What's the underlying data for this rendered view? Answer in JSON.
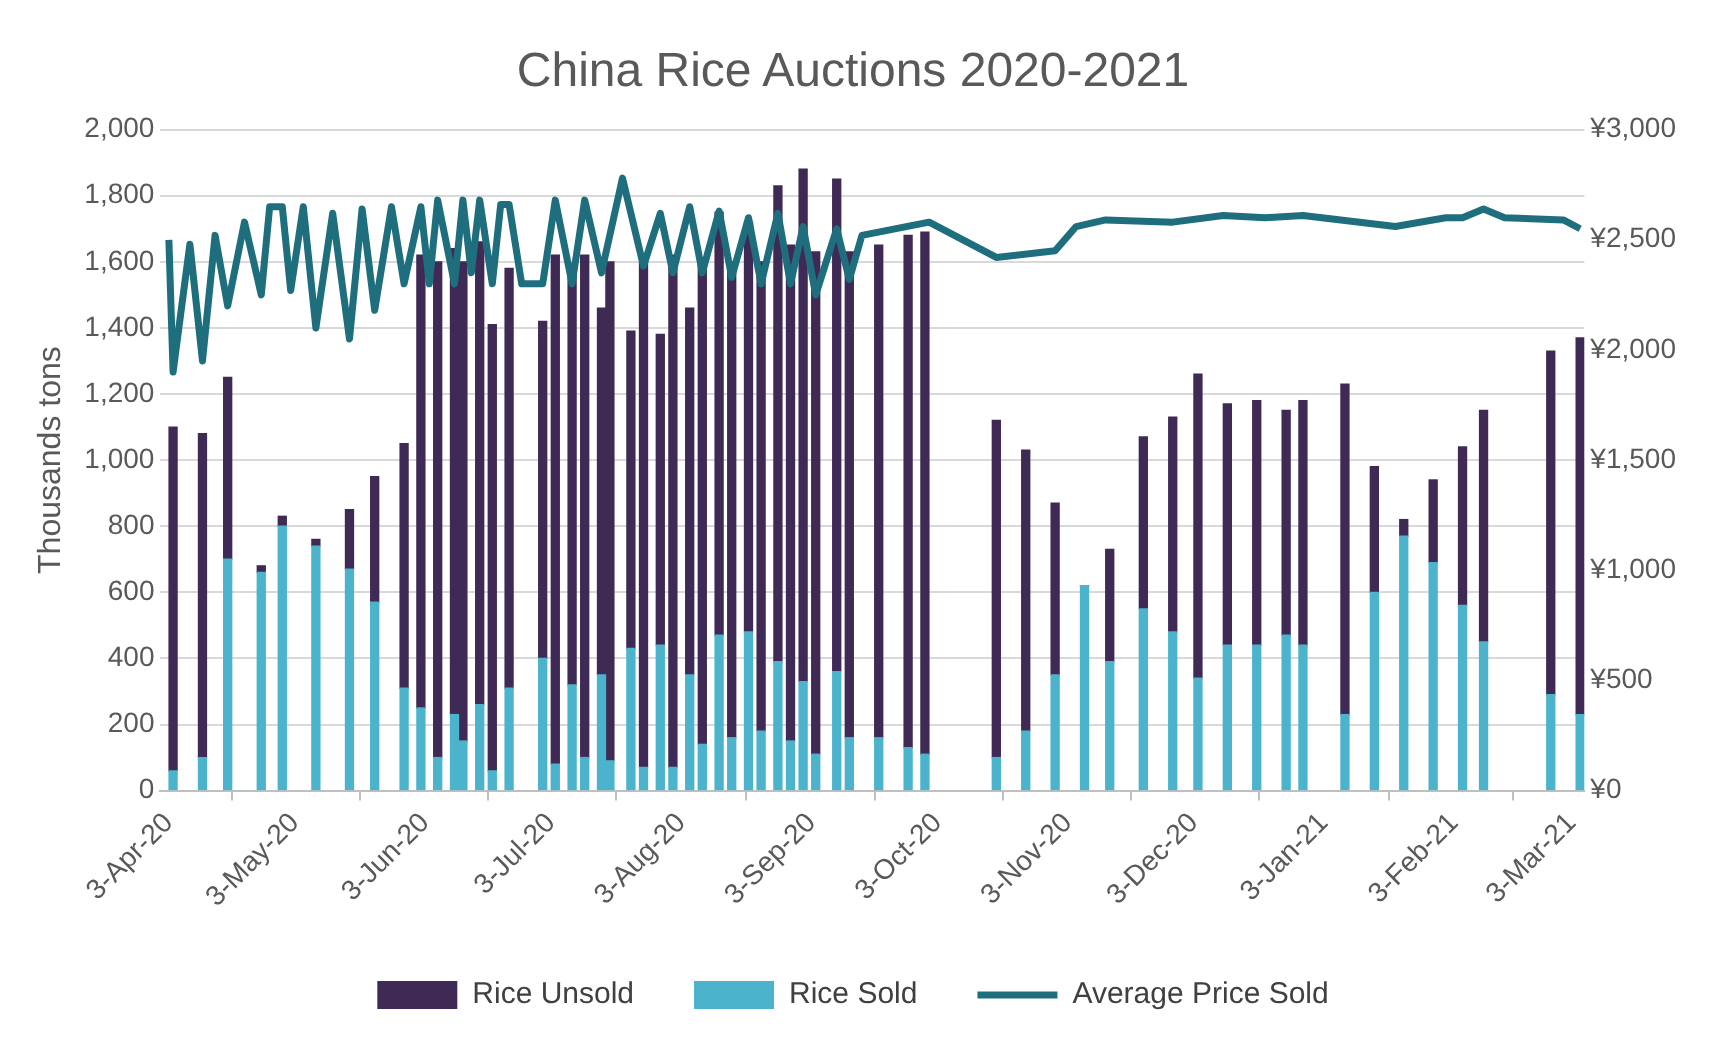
{
  "chart_data": {
    "type": "bar",
    "title": "China Rice Auctions 2020-2021",
    "ylabel": "Thousands tons",
    "stacked": true,
    "grid": "y",
    "legend": "bottom",
    "x": [
      "2020-04-04",
      "2020-04-11",
      "2020-04-17",
      "2020-04-25",
      "2020-04-30",
      "2020-05-08",
      "2020-05-16",
      "2020-05-22",
      "2020-05-29",
      "2020-06-02",
      "2020-06-06",
      "2020-06-10",
      "2020-06-12",
      "2020-06-16",
      "2020-06-19",
      "2020-06-23",
      "2020-07-01",
      "2020-07-04",
      "2020-07-08",
      "2020-07-11",
      "2020-07-15",
      "2020-07-17",
      "2020-07-22",
      "2020-07-25",
      "2020-07-29",
      "2020-08-01",
      "2020-08-05",
      "2020-08-08",
      "2020-08-12",
      "2020-08-15",
      "2020-08-19",
      "2020-08-22",
      "2020-08-26",
      "2020-08-29",
      "2020-09-01",
      "2020-09-04",
      "2020-09-09",
      "2020-09-12",
      "2020-09-19",
      "2020-09-26",
      "2020-09-30",
      "2020-10-17",
      "2020-10-24",
      "2020-10-31",
      "2020-11-07",
      "2020-11-13",
      "2020-11-21",
      "2020-11-28",
      "2020-12-04",
      "2020-12-11",
      "2020-12-18",
      "2020-12-25",
      "2020-12-29",
      "2021-01-08",
      "2021-01-15",
      "2021-01-22",
      "2021-01-29",
      "2021-02-05",
      "2021-02-10",
      "2021-02-26",
      "2021-03-05"
    ],
    "series": [
      {
        "name": "Rice Sold",
        "color": "#4bb4cc",
        "values": [
          60,
          100,
          700,
          660,
          800,
          740,
          670,
          570,
          310,
          250,
          100,
          230,
          150,
          260,
          60,
          310,
          400,
          80,
          320,
          100,
          350,
          90,
          430,
          70,
          440,
          70,
          350,
          140,
          470,
          160,
          480,
          180,
          390,
          150,
          330,
          110,
          360,
          160,
          160,
          130,
          110,
          100,
          180,
          350,
          620,
          390,
          550,
          480,
          340,
          440,
          440,
          470,
          440,
          230,
          600,
          770,
          690,
          560,
          450,
          290,
          230
        ]
      },
      {
        "name": "Rice Unsold",
        "color": "#3f2a56",
        "values": [
          1040,
          980,
          550,
          20,
          30,
          20,
          180,
          380,
          740,
          1370,
          1500,
          1410,
          1450,
          1400,
          1350,
          1270,
          1020,
          1540,
          1250,
          1520,
          1110,
          1510,
          960,
          1530,
          940,
          1550,
          1110,
          1460,
          1280,
          1440,
          1240,
          1420,
          1440,
          1500,
          1550,
          1520,
          1490,
          1470,
          1490,
          1550,
          1580,
          1020,
          850,
          520,
          0,
          340,
          520,
          650,
          920,
          730,
          740,
          680,
          740,
          1000,
          380,
          50,
          250,
          480,
          700,
          1040,
          1140
        ]
      },
      {
        "name": "Average Price Sold",
        "type": "line",
        "axis": "y2",
        "color": "#1f6e7e",
        "x": [
          "2020-04-03",
          "2020-04-04",
          "2020-04-08",
          "2020-04-11",
          "2020-04-14",
          "2020-04-17",
          "2020-04-21",
          "2020-04-25",
          "2020-04-27",
          "2020-04-30",
          "2020-05-02",
          "2020-05-05",
          "2020-05-08",
          "2020-05-12",
          "2020-05-16",
          "2020-05-19",
          "2020-05-22",
          "2020-05-26",
          "2020-05-29",
          "2020-06-02",
          "2020-06-04",
          "2020-06-06",
          "2020-06-10",
          "2020-06-12",
          "2020-06-14",
          "2020-06-16",
          "2020-06-19",
          "2020-06-21",
          "2020-06-23",
          "2020-06-26",
          "2020-07-01",
          "2020-07-04",
          "2020-07-08",
          "2020-07-11",
          "2020-07-15",
          "2020-07-20",
          "2020-07-25",
          "2020-07-29",
          "2020-08-01",
          "2020-08-05",
          "2020-08-08",
          "2020-08-12",
          "2020-08-15",
          "2020-08-19",
          "2020-08-22",
          "2020-08-26",
          "2020-08-29",
          "2020-09-01",
          "2020-09-04",
          "2020-09-09",
          "2020-09-12",
          "2020-09-15",
          "2020-10-01",
          "2020-10-17",
          "2020-10-31",
          "2020-11-05",
          "2020-11-12",
          "2020-11-28",
          "2020-12-10",
          "2020-12-20",
          "2020-12-29",
          "2021-01-20",
          "2021-02-01",
          "2021-02-05",
          "2021-02-10",
          "2021-02-15",
          "2021-03-01",
          "2021-03-05"
        ],
        "values": [
          2500,
          1900,
          2480,
          1950,
          2520,
          2200,
          2580,
          2250,
          2650,
          2650,
          2270,
          2650,
          2100,
          2620,
          2050,
          2640,
          2180,
          2650,
          2300,
          2650,
          2300,
          2680,
          2300,
          2680,
          2350,
          2680,
          2300,
          2660,
          2660,
          2300,
          2300,
          2680,
          2300,
          2680,
          2350,
          2780,
          2380,
          2620,
          2350,
          2650,
          2350,
          2630,
          2330,
          2600,
          2300,
          2620,
          2300,
          2560,
          2250,
          2550,
          2320,
          2520,
          2580,
          2420,
          2450,
          2560,
          2590,
          2580,
          2610,
          2600,
          2610,
          2560,
          2600,
          2600,
          2640,
          2600,
          2590,
          2550
        ]
      }
    ],
    "xlim": [
      "2020-04-01",
      "2021-03-06"
    ],
    "xticks": [
      {
        "value": "2020-04-03",
        "label": "3-Apr-20"
      },
      {
        "value": "2020-05-03",
        "label": "3-May-20"
      },
      {
        "value": "2020-06-03",
        "label": "3-Jun-20"
      },
      {
        "value": "2020-07-03",
        "label": "3-Jul-20"
      },
      {
        "value": "2020-08-03",
        "label": "3-Aug-20"
      },
      {
        "value": "2020-09-03",
        "label": "3-Sep-20"
      },
      {
        "value": "2020-10-03",
        "label": "3-Oct-20"
      },
      {
        "value": "2020-11-03",
        "label": "3-Nov-20"
      },
      {
        "value": "2020-12-03",
        "label": "3-Dec-20"
      },
      {
        "value": "2021-01-03",
        "label": "3-Jan-21"
      },
      {
        "value": "2021-02-03",
        "label": "3-Feb-21"
      },
      {
        "value": "2021-03-03",
        "label": "3-Mar-21"
      }
    ],
    "ylim": [
      0,
      2000
    ],
    "yticks": [
      0,
      200,
      400,
      600,
      800,
      {
        "value": 1000,
        "label": "1,000"
      },
      {
        "value": 1200,
        "label": "1,200"
      },
      {
        "value": 1400,
        "label": "1,400"
      },
      {
        "value": 1600,
        "label": "1,600"
      },
      {
        "value": 1800,
        "label": "1,800"
      },
      {
        "value": 2000,
        "label": "2,000"
      }
    ],
    "y2lim": [
      0,
      3000
    ],
    "y2ticks": [
      {
        "value": 0,
        "label": "¥0"
      },
      {
        "value": 500,
        "label": "¥500"
      },
      {
        "value": 1000,
        "label": "¥1,000"
      },
      {
        "value": 1500,
        "label": "¥1,500"
      },
      {
        "value": 2000,
        "label": "¥2,000"
      },
      {
        "value": 2500,
        "label": "¥2,500"
      },
      {
        "value": 3000,
        "label": "¥3,000"
      }
    ]
  }
}
